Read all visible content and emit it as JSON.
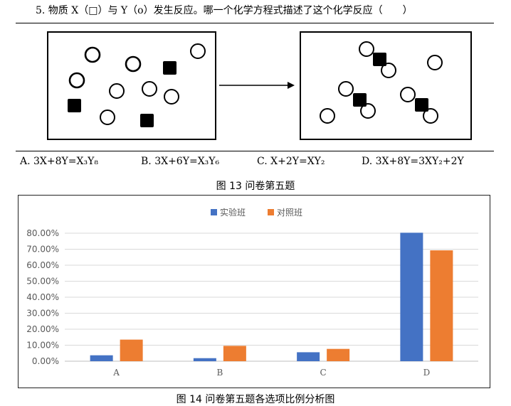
{
  "question": {
    "text": "5. 物质 X（□）与 Y（o）发生反应。哪一个化学方程式描述了这个化学反应（　　）"
  },
  "options": [
    {
      "letter": "A.",
      "equation": "3X+8Y=X₃Y₈"
    },
    {
      "letter": "B.",
      "equation": "3X+6Y=X₃Y₆"
    },
    {
      "letter": "C.",
      "equation": "X+2Y=XY₂"
    },
    {
      "letter": "D.",
      "equation": "3X+8Y=3XY₂+2Y"
    }
  ],
  "figure13_caption": "图 13  问卷第五题",
  "figure14_caption": "图 14  问卷第五题各选项比例分析图",
  "chart_data": {
    "type": "bar",
    "title": "",
    "xlabel": "",
    "ylabel": "",
    "categories": [
      "A",
      "B",
      "C",
      "D"
    ],
    "series": [
      {
        "name": "实验班",
        "color": "#4472C4",
        "values": [
          3.7,
          1.9,
          5.6,
          80.3
        ]
      },
      {
        "name": "对照班",
        "color": "#ED7D31",
        "values": [
          13.5,
          9.6,
          7.7,
          69.3
        ]
      }
    ],
    "ylim": [
      0,
      80
    ],
    "yticks": [
      "0.00%",
      "10.00%",
      "20.00%",
      "30.00%",
      "40.00%",
      "50.00%",
      "60.00%",
      "70.00%",
      "80.00%"
    ],
    "grid": true,
    "legend_position": "top-center"
  }
}
